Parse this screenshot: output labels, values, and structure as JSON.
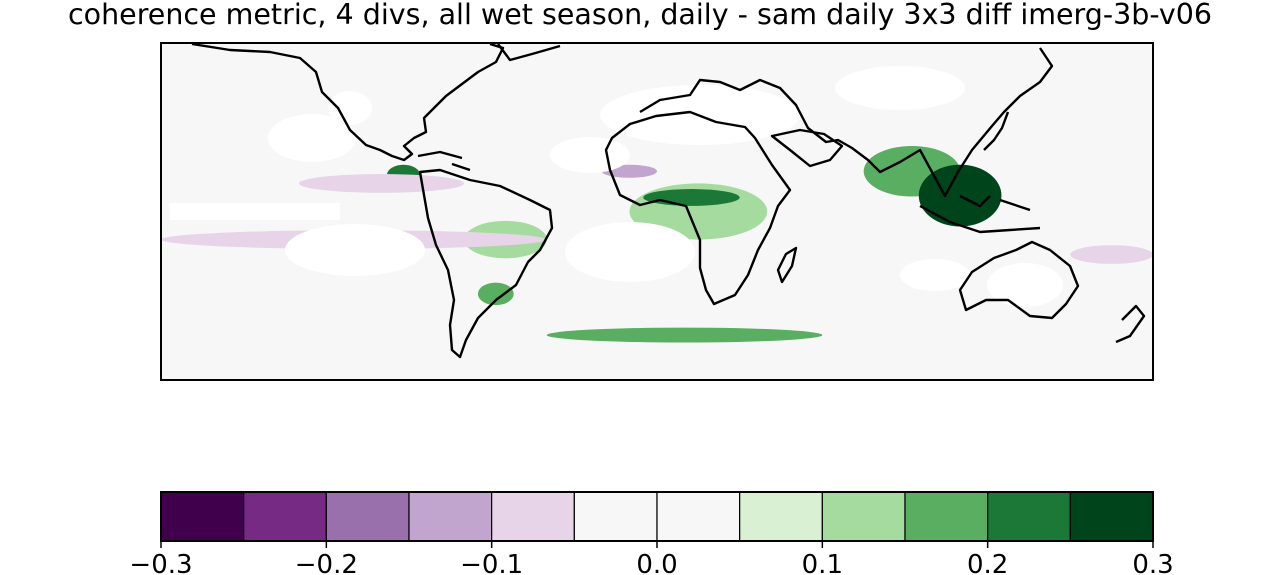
{
  "chart_data": {
    "type": "heatmap",
    "title": "coherence metric, 4 divs, all wet season, daily - sam daily 3x3 diff imerg-3b-v06",
    "xlabel": "",
    "ylabel": "",
    "projection": "global map (PlateCarree), coastlines drawn",
    "colormap": "PRGn",
    "colorbar": {
      "orientation": "horizontal",
      "boundaries": [
        -0.3,
        -0.25,
        -0.2,
        -0.15,
        -0.1,
        -0.05,
        0.0,
        0.05,
        0.1,
        0.15,
        0.2,
        0.25,
        0.3
      ],
      "colors": [
        "#40004b",
        "#762a83",
        "#9970ab",
        "#c2a5cf",
        "#e7d4e8",
        "#f7f7f7",
        "#f7f7f7",
        "#d9f0d3",
        "#a6dba0",
        "#5aae61",
        "#1b7837",
        "#00441b"
      ],
      "ticks": [
        -0.3,
        -0.2,
        -0.1,
        0.0,
        0.1,
        0.2,
        0.3
      ],
      "tick_labels": [
        "−0.3",
        "−0.2",
        "−0.1",
        "0.0",
        "0.1",
        "0.2",
        "0.3"
      ]
    },
    "regions": [
      {
        "lon": [
          -98,
          -86
        ],
        "lat": [
          14,
          25
        ],
        "value": 0.2
      },
      {
        "lon": [
          -70,
          -40
        ],
        "lat": [
          -25,
          -5
        ],
        "value": 0.12
      },
      {
        "lon": [
          -65,
          -52
        ],
        "lat": [
          -50,
          -38
        ],
        "value": 0.15
      },
      {
        "lon": [
          -10,
          40
        ],
        "lat": [
          -15,
          15
        ],
        "value": 0.13
      },
      {
        "lon": [
          -5,
          30
        ],
        "lat": [
          3,
          12
        ],
        "value": 0.22
      },
      {
        "lon": [
          75,
          110
        ],
        "lat": [
          8,
          35
        ],
        "value": 0.15
      },
      {
        "lon": [
          95,
          125
        ],
        "lat": [
          -8,
          25
        ],
        "value": 0.25
      },
      {
        "lon": [
          -40,
          60
        ],
        "lat": [
          -70,
          -62
        ],
        "value": 0.18
      },
      {
        "lon": [
          -180,
          -40
        ],
        "lat": [
          -20,
          -10
        ],
        "value": -0.06
      },
      {
        "lon": [
          -130,
          -70
        ],
        "lat": [
          10,
          20
        ],
        "value": -0.06
      },
      {
        "lon": [
          -20,
          0
        ],
        "lat": [
          18,
          25
        ],
        "value": -0.12
      },
      {
        "lon": [
          150,
          180
        ],
        "lat": [
          -28,
          -18
        ],
        "value": -0.07
      }
    ]
  }
}
